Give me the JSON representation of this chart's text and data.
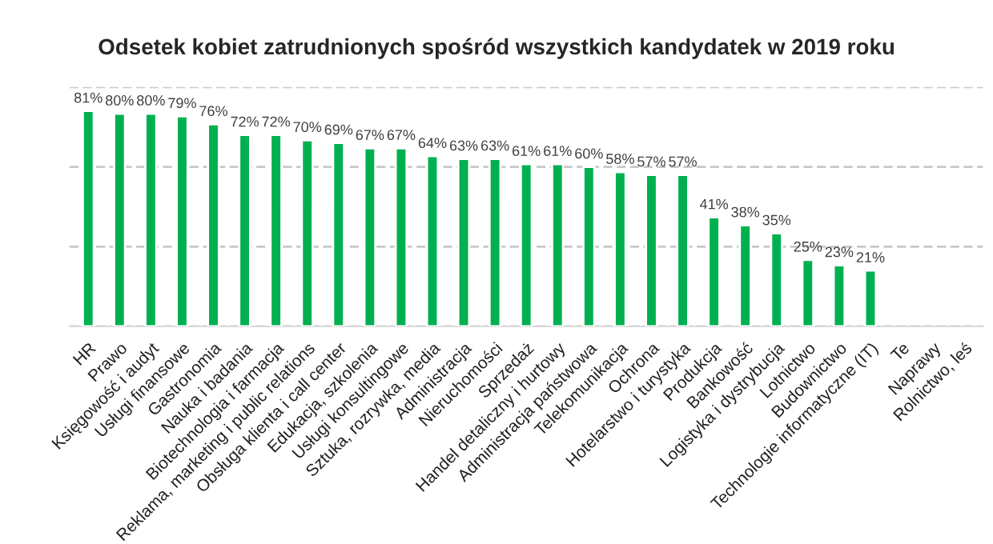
{
  "chart_data": {
    "type": "bar",
    "title": "Odsetek kobiet zatrudnionych spośród wszystkich kandydatek w 2019 roku",
    "categories": [
      "HR",
      "Prawo",
      "Księgowość i audyt",
      "Usługi finansowe",
      "Gastronomia",
      "Nauka i badania",
      "Biotechnologia i farmacja",
      "Reklama, marketing i public relations",
      "Obsługa klienta i call center",
      "Edukacja, szkolenia",
      "Usługi konsultingowe",
      "Sztuka, rozrywka, media",
      "Administracja",
      "Nieruchomości",
      "Sprzedaż",
      "Handel detaliczny i hurtowy",
      "Administracja państwowa",
      "Telekomunikacja",
      "Ochrona",
      "Hotelarstwo i turystyka",
      "Produkcja",
      "Bankowość",
      "Logistyka i dystrybucja",
      "Lotnictwo",
      "Budownictwo",
      "Technologie informatyczne (IT)",
      "Te",
      "Naprawy",
      "Rolnictwo, leś"
    ],
    "values": [
      81,
      80,
      80,
      79,
      76,
      72,
      72,
      70,
      69,
      67,
      67,
      64,
      63,
      63,
      61,
      61,
      60,
      58,
      57,
      57,
      41,
      38,
      35,
      25,
      23,
      21,
      null,
      null,
      null
    ],
    "value_labels": [
      "81%",
      "80%",
      "80%",
      "79%",
      "76%",
      "72%",
      "72%",
      "70%",
      "69%",
      "67%",
      "67%",
      "64%",
      "63%",
      "63%",
      "61%",
      "61%",
      "60%",
      "58%",
      "57%",
      "57%",
      "41%",
      "38%",
      "35%",
      "25%",
      "23%",
      "21%",
      null,
      null,
      null
    ],
    "color": "#00b050",
    "ylim": [
      0,
      90
    ],
    "yticks": [
      {
        "value": 0,
        "label": null
      },
      {
        "value": 30,
        "label": null
      },
      {
        "value": 60,
        "label": null
      },
      {
        "value": 90,
        "label": null
      }
    ],
    "grid": "y",
    "tick_labels": "x"
  }
}
